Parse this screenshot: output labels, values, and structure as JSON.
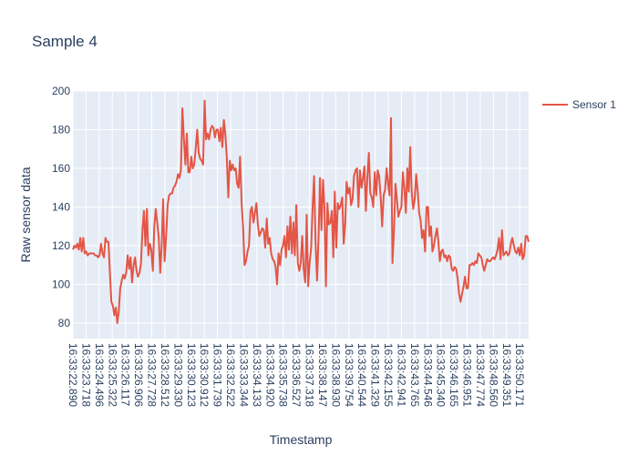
{
  "chart_data": {
    "type": "line",
    "title": "Sample 4",
    "xlabel": "Timestamp",
    "ylabel": "Raw sensor data",
    "ylim": [
      72,
      200
    ],
    "y_ticks": [
      80,
      100,
      120,
      140,
      160,
      180,
      200
    ],
    "x_tick_labels": [
      "16:33:22.890",
      "16:33:23.718",
      "16:33:24.496",
      "16:33:25.322",
      "16:33:26.117",
      "16:33:26.906",
      "16:33:27.728",
      "16:33:28.512",
      "16:33:29.330",
      "16:33:30.123",
      "16:33:30.912",
      "16:33:31.739",
      "16:33:32.522",
      "16:33:33.344",
      "16:33:34.133",
      "16:33:34.920",
      "16:33:35.738",
      "16:33:36.527",
      "16:33:37.318",
      "16:33:38.147",
      "16:33:38.930",
      "16:33:39.754",
      "16:33:40.544",
      "16:33:41.329",
      "16:33:42.155",
      "16:33:42.941",
      "16:33:43.765",
      "16:33:44.546",
      "16:33:45.340",
      "16:33:46.165",
      "16:33:46.951",
      "16:33:47.774",
      "16:33:48.560",
      "16:33:49.351",
      "16:33:50.171"
    ],
    "grid": true,
    "legend_position": "top-right",
    "colors": {
      "series": "#e45545",
      "plot_bg": "#e5ecf6",
      "grid": "#ffffff",
      "text": "#2a3f5f"
    },
    "series": [
      {
        "name": "Sensor 1",
        "values": [
          118,
          120,
          119,
          121,
          118,
          124,
          117,
          124,
          116,
          117,
          115,
          116,
          116,
          116,
          116,
          115,
          115,
          114,
          115,
          121,
          116,
          114,
          124,
          122,
          122,
          106,
          91,
          89,
          84,
          88,
          80,
          86,
          98,
          102,
          105,
          103,
          106,
          115,
          108,
          114,
          101,
          110,
          114,
          107,
          104,
          106,
          111,
          128,
          138,
          120,
          139,
          115,
          121,
          118,
          107,
          130,
          139,
          132,
          124,
          106,
          120,
          144,
          112,
          125,
          141,
          146,
          147,
          147,
          150,
          151,
          153,
          157,
          155,
          159,
          191,
          175,
          162,
          178,
          158,
          158,
          166,
          160,
          162,
          170,
          180,
          168,
          165,
          164,
          162,
          195,
          175,
          178,
          175,
          180,
          182,
          181,
          176,
          180,
          180,
          174,
          181,
          171,
          185,
          178,
          166,
          145,
          164,
          159,
          162,
          159,
          160,
          152,
          150,
          166,
          142,
          130,
          110,
          112,
          117,
          120,
          138,
          140,
          132,
          137,
          142,
          131,
          125,
          127,
          129,
          128,
          119,
          134,
          121,
          124,
          116,
          113,
          112,
          109,
          100,
          116,
          110,
          118,
          120,
          125,
          114,
          130,
          118,
          135,
          116,
          132,
          115,
          141,
          111,
          107,
          111,
          125,
          108,
          101,
          136,
          99,
          111,
          119,
          140,
          156,
          122,
          102,
          124,
          155,
          128,
          154,
          140,
          99,
          142,
          131,
          132,
          138,
          114,
          148,
          119,
          142,
          139,
          141,
          145,
          121,
          131,
          153,
          147,
          150,
          141,
          144,
          156,
          159,
          160,
          140,
          159,
          150,
          155,
          161,
          138,
          156,
          168,
          147,
          145,
          140,
          158,
          146,
          159,
          156,
          145,
          130,
          146,
          149,
          160,
          152,
          146,
          186,
          111,
          128,
          152,
          144,
          135,
          138,
          140,
          158,
          150,
          137,
          160,
          148,
          171,
          147,
          139,
          144,
          157,
          149,
          137,
          133,
          124,
          128,
          117,
          140,
          140,
          125,
          130,
          117,
          120,
          125,
          129,
          122,
          112,
          117,
          118,
          114,
          115,
          112,
          115,
          114,
          108,
          107,
          109,
          108,
          103,
          95,
          91,
          95,
          99,
          104,
          98,
          98,
          110,
          110,
          111,
          110,
          112,
          111,
          116,
          115,
          114,
          110,
          107,
          110,
          113,
          112,
          112,
          113,
          114,
          113,
          115,
          118,
          124,
          113,
          128,
          115,
          116,
          117,
          115,
          116,
          121,
          124,
          120,
          117,
          116,
          119,
          115,
          121,
          113,
          115,
          125,
          125,
          122
        ]
      }
    ]
  }
}
